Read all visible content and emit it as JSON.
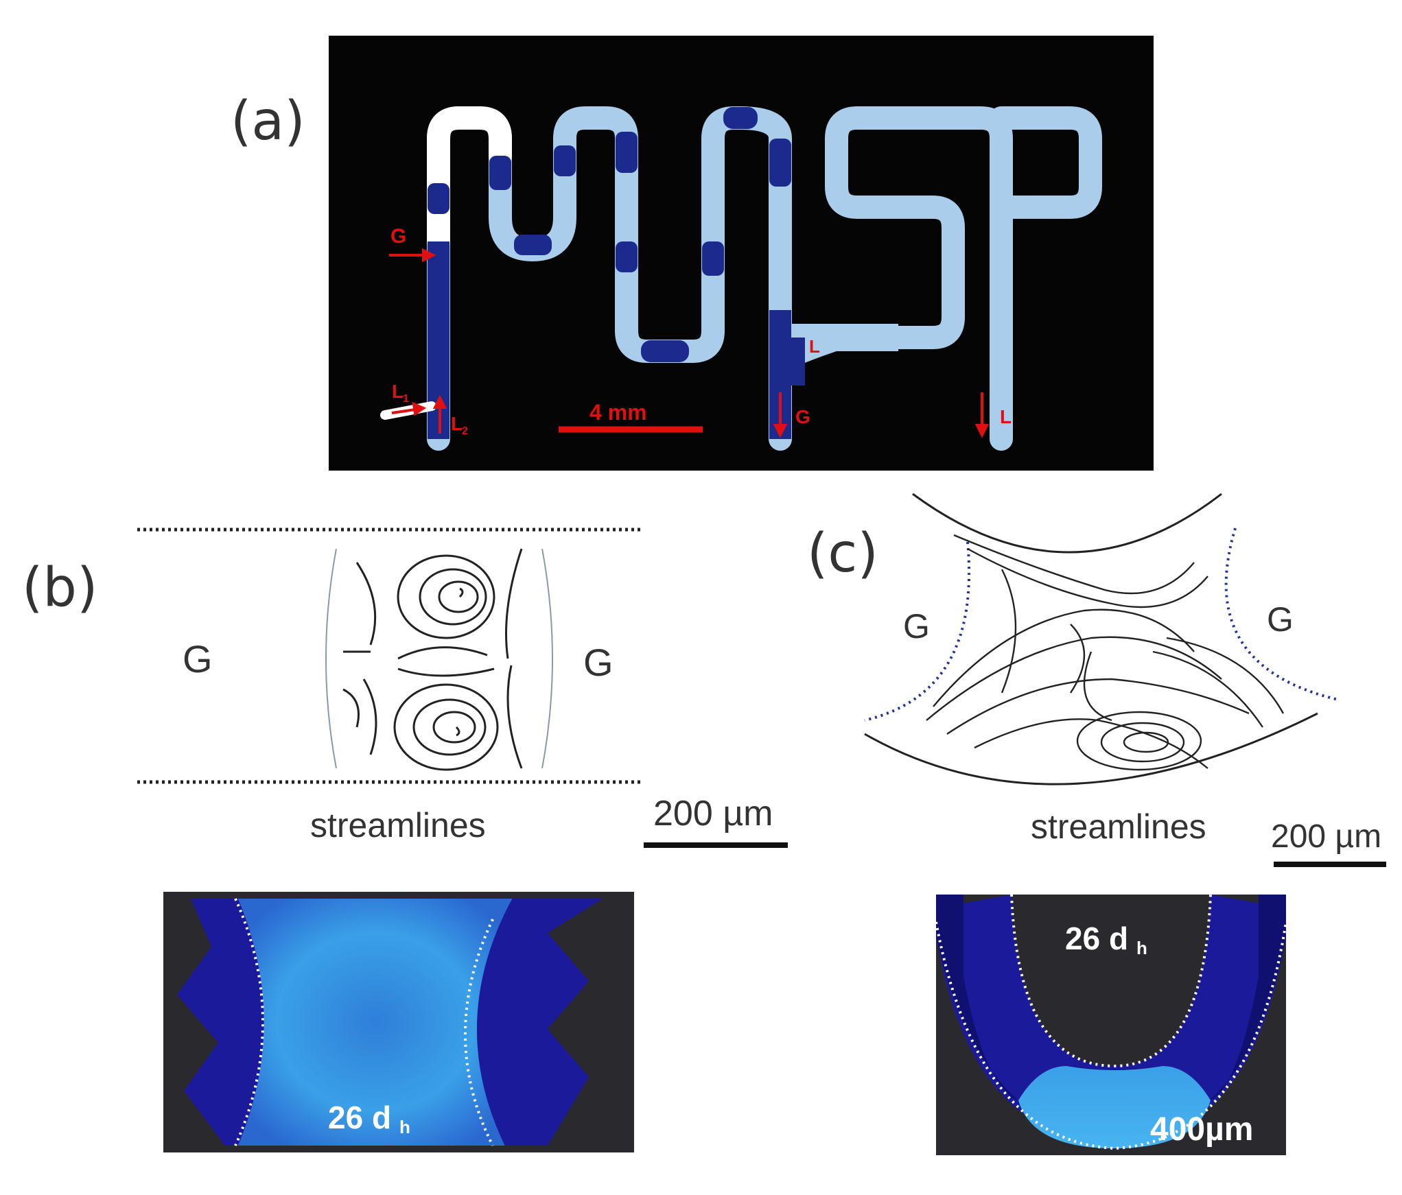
{
  "panels": {
    "a": {
      "label": "(a)",
      "labels": {
        "G_in": "G",
        "L1": "L",
        "L1_sub": "1",
        "L2": "L",
        "L2_sub": "2",
        "L_sep": "L",
        "G_out": "G",
        "L_out": "L",
        "scale": "4 mm"
      }
    },
    "b": {
      "label": "(b)",
      "gas_left": "G",
      "gas_right": "G",
      "caption": "streamlines",
      "scale": "200 µm",
      "fluor_main": "26 d",
      "fluor_sub": "h"
    },
    "c": {
      "label": "(c)",
      "gas_left": "G",
      "gas_right": "G",
      "caption": "streamlines",
      "scale": "200 µm",
      "fluor_main": "26 d",
      "fluor_sub": "h",
      "fluor_scale": "400µm"
    }
  },
  "colors": {
    "chip_bg": "#050505",
    "channel": "#a9cdeb",
    "channel_dark": "#1b2a8c",
    "marker_red": "#e01010",
    "fluor_bg": "#2a2a2e",
    "fluor_blue": "#3aa0e8",
    "fluor_dark": "#1a1a9a"
  }
}
